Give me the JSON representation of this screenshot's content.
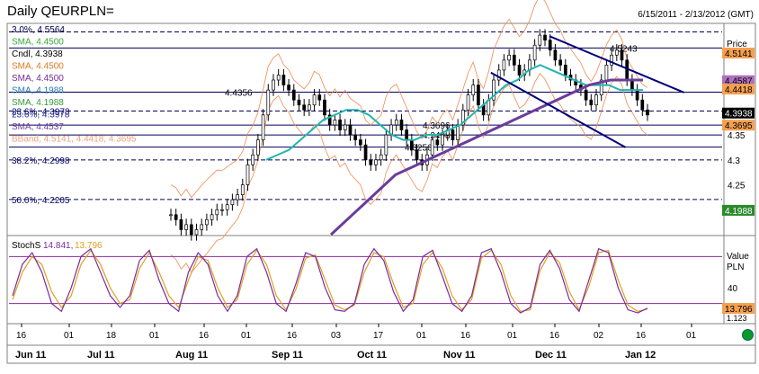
{
  "window": {
    "title": "Daily QEURPLN=",
    "date_range": "6/15/2011 - 2/13/2012 (GMT)"
  },
  "colors": {
    "price": "#000000",
    "sma_short": "#1fb5b0",
    "sma_long": "#6a3d9a",
    "bollinger": "#f08a50",
    "fib": "#00005a",
    "trendline": "#00007a",
    "stoch_k": "#7a2aa0",
    "stoch_d": "#e0a020",
    "stoch_level": "#8a2a9a",
    "price_tag": "#000000",
    "orange_tag": "#f5a050",
    "purple_tag": "#b070c0",
    "green_tag": "#2a8a2a"
  },
  "legend": [
    {
      "text": "3.0%, 4.5564",
      "color": "#000040"
    },
    {
      "text": "SMA, 4.4500",
      "color": "#3aa83a"
    },
    {
      "text": "Cndl, 4.3938",
      "color": "#000000"
    },
    {
      "text": "SMA, 4.4500",
      "color": "#e07820"
    },
    {
      "text": "SMA, 4.4500",
      "color": "#7a2a9a"
    },
    {
      "text": "SMA, 4.1988",
      "color": "#2a7ab0"
    },
    {
      "text": "SMA, 4.1988",
      "color": "#3a9a3a"
    },
    {
      "text": "23.6%, 4.3978",
      "color": "#2a2aa0"
    },
    {
      "text": "SMA, 4.4537",
      "color": "#6a3da0"
    },
    {
      "text": "BBand, 4.5141, 4.4418, 4.3695",
      "color": "#f0a080"
    }
  ],
  "chart_data": {
    "type": "candlestick",
    "title": "Daily QEURPLN=",
    "x_range": [
      "2011-06-15",
      "2012-02-13"
    ],
    "ylim": [
      4.15,
      4.57
    ],
    "yticks": [
      4.35,
      4.3,
      4.25
    ],
    "price_tick_labels": [
      "4.35",
      "4.3",
      "4.25"
    ],
    "axis_unit_label": "Price\nPLN",
    "x_day_labels": [
      "16",
      "01",
      "18",
      "01",
      "16",
      "01",
      "16",
      "03",
      "17",
      "01",
      "16",
      "01",
      "16",
      "02",
      "16",
      "01"
    ],
    "x_month_labels": [
      "Jun 11",
      "Jul 11",
      "Aug 11",
      "Sep 11",
      "Oct 11",
      "Nov 11",
      "Dec 11",
      "Jan 12"
    ],
    "fib_levels": [
      {
        "label": "3.0%, 4.5564",
        "value": 4.5564
      },
      {
        "label": "23.6%, 4.3978",
        "value": 4.3978
      },
      {
        "label": "38.2%, 4.2998",
        "value": 4.2998
      },
      {
        "label": "50.0%, 4.2205",
        "value": 4.2205
      }
    ],
    "horizontal_lines": [
      {
        "label": "4.4356",
        "value": 4.4356
      },
      {
        "label": "4.3696",
        "value": 4.3696
      },
      {
        "label": "4.3498",
        "value": 4.3498
      },
      {
        "label": "4.3256",
        "value": 4.3256
      },
      {
        "label": "4.5243",
        "value": 4.5243
      }
    ],
    "price_tags": [
      {
        "value": 4.5141,
        "label": "4.5141",
        "style": "orange"
      },
      {
        "value": 4.4587,
        "label": "4.4587",
        "style": "purple"
      },
      {
        "value": 4.4418,
        "label": "4.4418",
        "style": "orange"
      },
      {
        "value": 4.3938,
        "label": "4.3938",
        "style": "black"
      },
      {
        "value": 4.3695,
        "label": "4.3695",
        "style": "orange"
      },
      {
        "value": 4.1988,
        "label": "4.1988",
        "style": "green"
      }
    ],
    "trendlines": [
      {
        "from": [
          "2011-11-26",
          4.475
        ],
        "to": [
          "2012-01-11",
          4.325
        ]
      },
      {
        "from": [
          "2011-12-16",
          4.548
        ],
        "to": [
          "2012-01-31",
          4.435
        ]
      }
    ],
    "candles_close": [
      4.19,
      4.18,
      4.16,
      4.17,
      4.15,
      4.16,
      4.17,
      4.18,
      4.19,
      4.2,
      4.2,
      4.21,
      4.22,
      4.23,
      4.25,
      4.29,
      4.31,
      4.34,
      4.39,
      4.44,
      4.46,
      4.47,
      4.45,
      4.44,
      4.42,
      4.41,
      4.4,
      4.41,
      4.43,
      4.42,
      4.39,
      4.37,
      4.38,
      4.36,
      4.37,
      4.35,
      4.34,
      4.33,
      4.3,
      4.29,
      4.3,
      4.31,
      4.35,
      4.37,
      4.38,
      4.36,
      4.34,
      4.32,
      4.3,
      4.29,
      4.31,
      4.34,
      4.33,
      4.35,
      4.36,
      4.34,
      4.37,
      4.4,
      4.43,
      4.45,
      4.41,
      4.39,
      4.42,
      4.46,
      4.48,
      4.5,
      4.51,
      4.49,
      4.47,
      4.48,
      4.5,
      4.53,
      4.55,
      4.54,
      4.52,
      4.5,
      4.49,
      4.47,
      4.46,
      4.45,
      4.44,
      4.42,
      4.41,
      4.43,
      4.46,
      4.49,
      4.51,
      4.52,
      4.5,
      4.46,
      4.44,
      4.42,
      4.4,
      4.39
    ],
    "sma_short": [
      4.3,
      4.31,
      4.32,
      4.34,
      4.36,
      4.38,
      4.39,
      4.4,
      4.4,
      4.39,
      4.37,
      4.35,
      4.34,
      4.34,
      4.35,
      4.35,
      4.36,
      4.37,
      4.39,
      4.41,
      4.43,
      4.45,
      4.46,
      4.48,
      4.49,
      4.48,
      4.47,
      4.46,
      4.45,
      4.45,
      4.45,
      4.44,
      4.44,
      4.44
    ],
    "sma_long": [
      4.15,
      4.17,
      4.19,
      4.21,
      4.23,
      4.25,
      4.27,
      4.28,
      4.29,
      4.3,
      4.31,
      4.32,
      4.33,
      4.34,
      4.35,
      4.36,
      4.37,
      4.38,
      4.39,
      4.4,
      4.41,
      4.42,
      4.43,
      4.44,
      4.45,
      4.455,
      4.46,
      4.46,
      4.46,
      4.46
    ],
    "stochastic": {
      "label": "StochS",
      "k_value": "14.841",
      "d_value": "13.796",
      "axis_label": "Value\nPLN",
      "ylim": [
        0,
        100
      ],
      "levels": [
        80,
        20
      ],
      "ticks": [
        {
          "value": 40,
          "label": "40"
        }
      ],
      "tag": {
        "value": 13.796,
        "label": "13.796"
      },
      "tag_secondary": "1.123",
      "k": [
        30,
        70,
        85,
        60,
        20,
        10,
        40,
        80,
        90,
        60,
        30,
        15,
        30,
        75,
        88,
        50,
        20,
        10,
        60,
        85,
        70,
        30,
        10,
        30,
        80,
        90,
        60,
        20,
        10,
        45,
        85,
        80,
        40,
        12,
        10,
        20,
        70,
        90,
        75,
        35,
        10,
        25,
        80,
        88,
        55,
        20,
        10,
        30,
        85,
        90,
        60,
        20,
        8,
        15,
        70,
        88,
        65,
        25,
        10,
        50,
        90,
        85,
        40,
        12,
        8,
        14
      ],
      "d": [
        25,
        60,
        80,
        70,
        35,
        15,
        30,
        70,
        88,
        70,
        40,
        20,
        25,
        65,
        85,
        60,
        30,
        15,
        50,
        80,
        75,
        40,
        15,
        25,
        70,
        88,
        70,
        30,
        12,
        38,
        78,
        82,
        50,
        18,
        12,
        18,
        60,
        85,
        80,
        45,
        15,
        20,
        70,
        85,
        65,
        30,
        12,
        25,
        78,
        88,
        70,
        30,
        10,
        12,
        62,
        85,
        72,
        35,
        12,
        42,
        85,
        88,
        50,
        18,
        10,
        13
      ]
    }
  },
  "footer": {
    "status": "online"
  }
}
